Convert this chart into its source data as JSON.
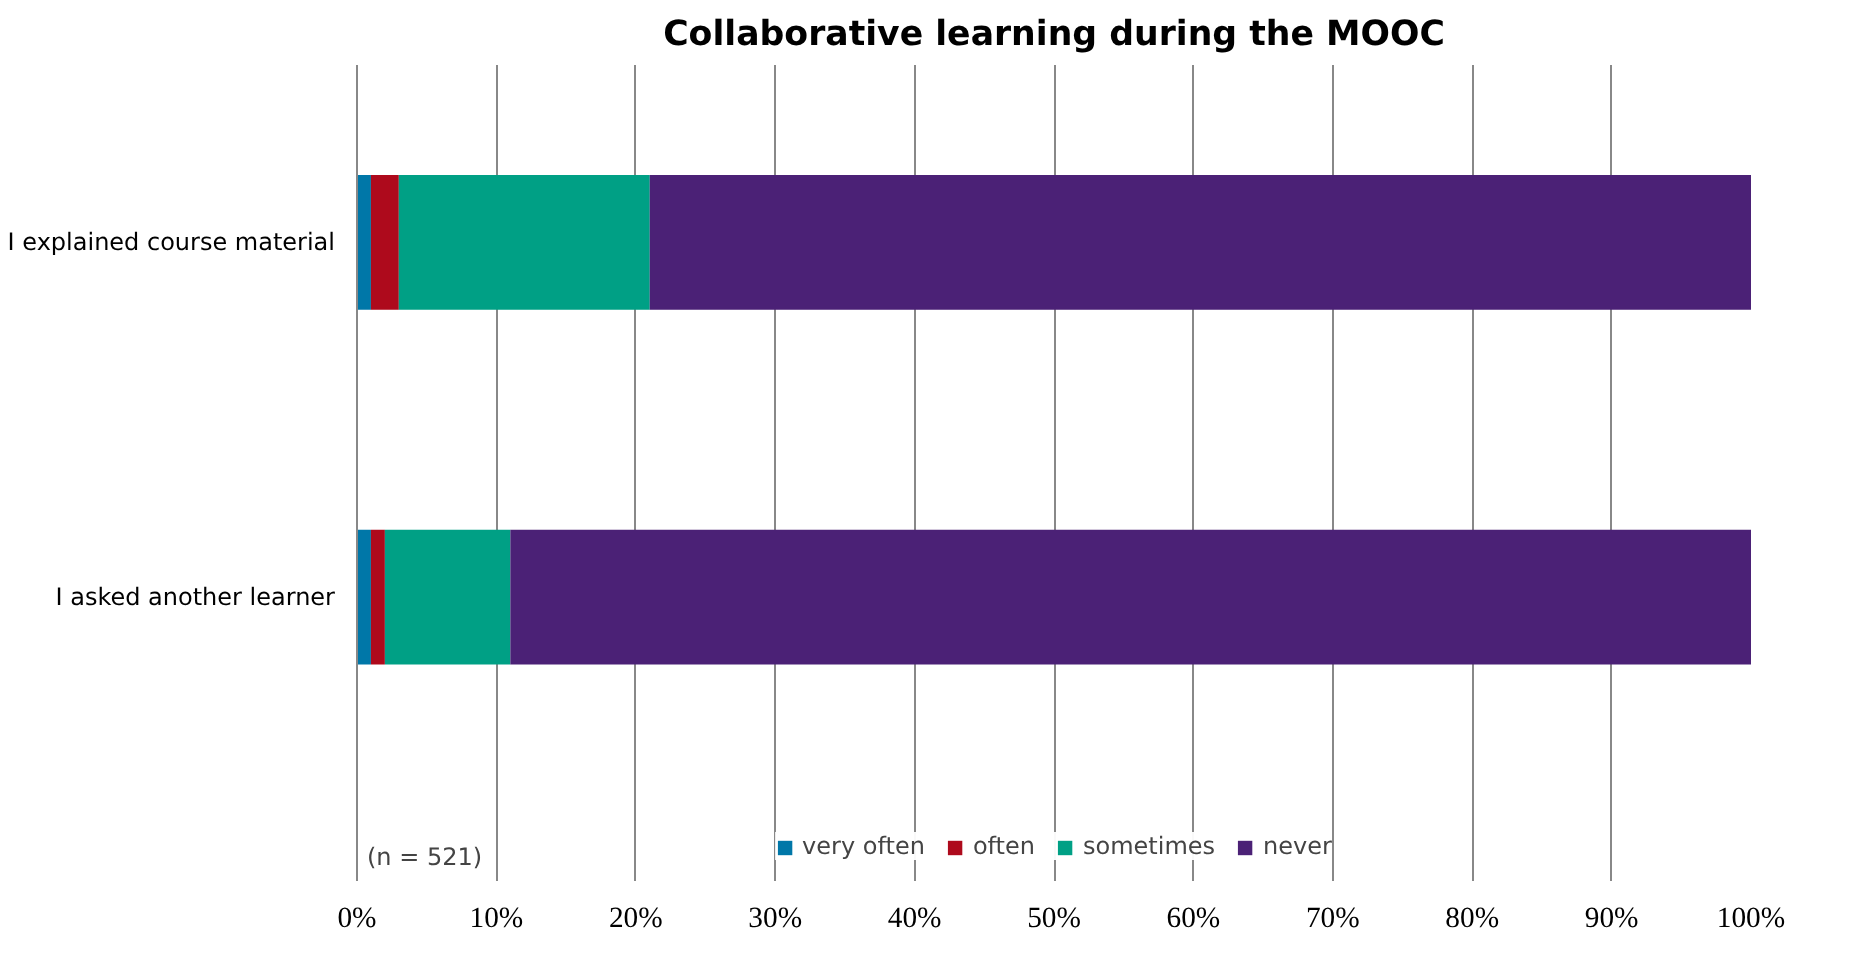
{
  "chart_data": {
    "type": "bar",
    "orientation": "horizontal",
    "stacked": true,
    "title": "Collaborative learning during the MOOC",
    "categories": [
      "I explained course material",
      "I asked another learner"
    ],
    "series": [
      {
        "name": "very often",
        "color": "#0077a8",
        "values": [
          1,
          1
        ]
      },
      {
        "name": "often",
        "color": "#ae0a1c",
        "values": [
          2,
          1
        ]
      },
      {
        "name": "sometimes",
        "color": "#00a085",
        "values": [
          18,
          9
        ]
      },
      {
        "name": "never",
        "color": "#4b2176",
        "values": [
          79,
          89
        ]
      }
    ],
    "xlim": [
      0,
      100
    ],
    "xticks": [
      {
        "value": 0,
        "label": "0%"
      },
      {
        "value": 10,
        "label": "10%"
      },
      {
        "value": 20,
        "label": "20%"
      },
      {
        "value": 30,
        "label": "30%"
      },
      {
        "value": 40,
        "label": "40%"
      },
      {
        "value": 50,
        "label": "50%"
      },
      {
        "value": 60,
        "label": "60%"
      },
      {
        "value": 70,
        "label": "70%"
      },
      {
        "value": 80,
        "label": "80%"
      },
      {
        "value": 90,
        "label": "90%"
      },
      {
        "value": 100,
        "label": "100%"
      }
    ],
    "grid": "x",
    "legend": "bottom",
    "annotations": [
      "(n = 521)"
    ]
  }
}
